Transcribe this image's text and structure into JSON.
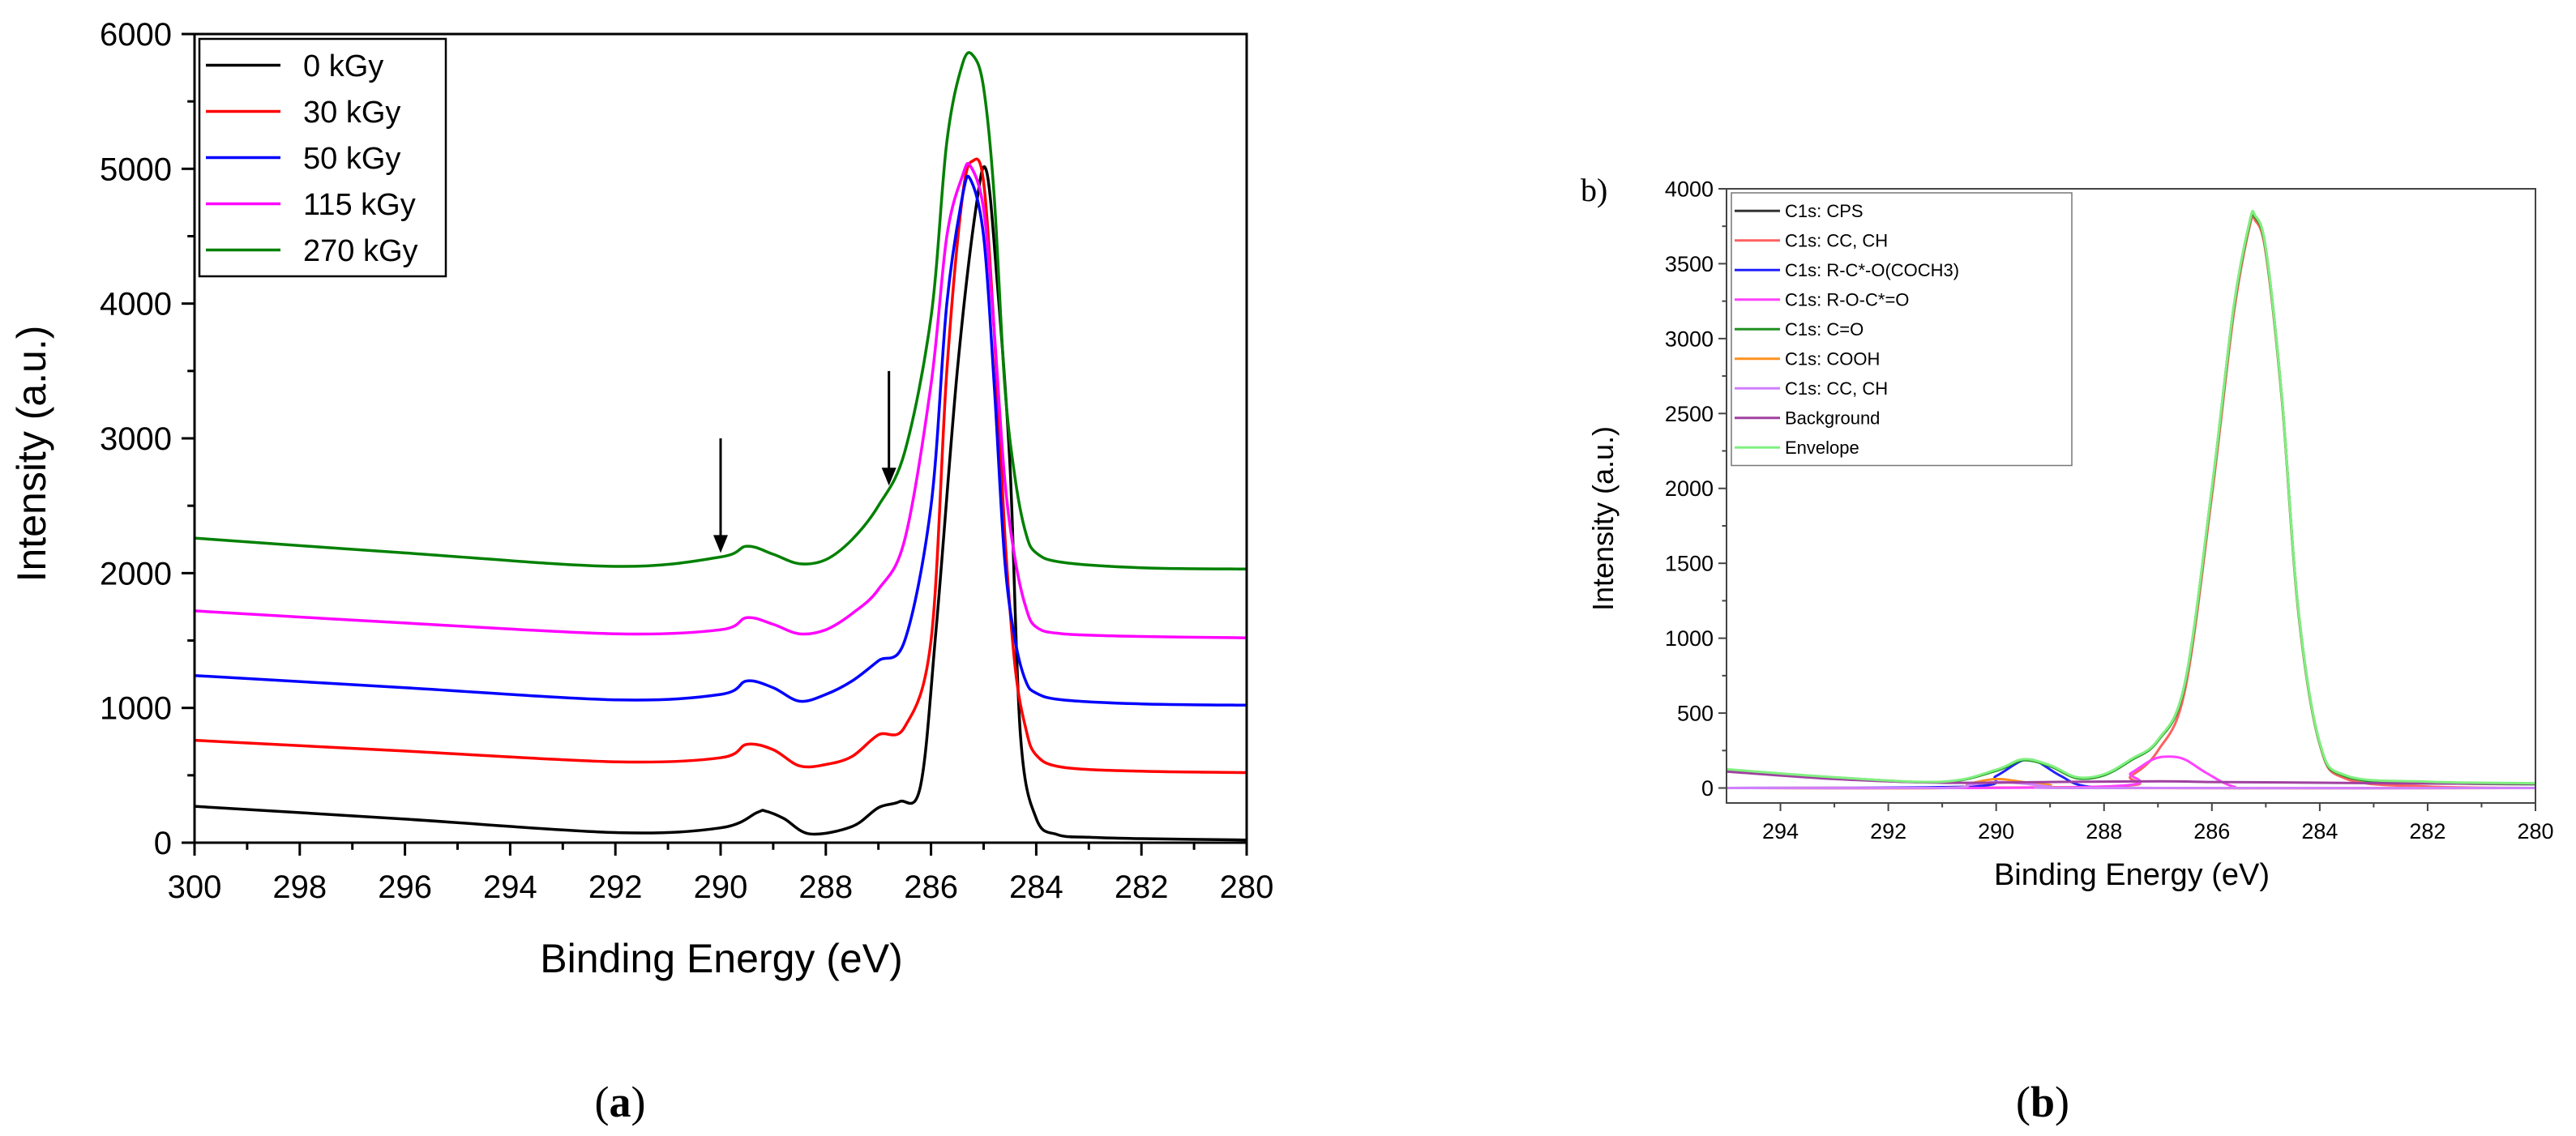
{
  "chart_data": [
    {
      "type": "line",
      "panel_caption": {
        "open": "(",
        "letter": "a",
        "close": ")"
      },
      "title": "",
      "xlabel": "Binding Energy (eV)",
      "ylabel": "Intensity (a.u.)",
      "xlim": [
        300,
        280
      ],
      "ylim": [
        0,
        6000
      ],
      "x_ticks": [
        "300",
        "298",
        "296",
        "294",
        "292",
        "290",
        "288",
        "286",
        "284",
        "282",
        "280"
      ],
      "y_ticks": [
        "0",
        "1000",
        "2000",
        "3000",
        "4000",
        "5000",
        "6000"
      ],
      "legend_position": "top-left",
      "arrows": [
        {
          "x": 290.0,
          "y_from": 3000,
          "y_to": 2150
        },
        {
          "x": 286.8,
          "y_from": 3500,
          "y_to": 2650
        }
      ],
      "series": [
        {
          "name": "0 kGy",
          "color": "#000000",
          "x": [
            300,
            296,
            292,
            290,
            289.3,
            289.15,
            288.8,
            288.3,
            287.5,
            287.0,
            286.6,
            286.2,
            285.9,
            285.5,
            285.15,
            284.95,
            284.75,
            284.5,
            284.3,
            284.0,
            283.6,
            283.0,
            282,
            280
          ],
          "values": [
            270,
            175,
            75,
            110,
            225,
            235,
            180,
            65,
            120,
            260,
            305,
            420,
            1600,
            3500,
            4700,
            4990,
            4200,
            2800,
            800,
            180,
            60,
            40,
            30,
            20
          ]
        },
        {
          "name": "30 kGy",
          "color": "#ff0000",
          "x": [
            300,
            296,
            292,
            290,
            289.5,
            289.0,
            288.5,
            288.0,
            287.5,
            287.0,
            286.5,
            286.0,
            285.7,
            285.4,
            285.2,
            285.0,
            284.8,
            284.6,
            284.4,
            284.2,
            284.0,
            283.5,
            282,
            280
          ],
          "values": [
            760,
            680,
            600,
            630,
            730,
            690,
            570,
            580,
            640,
            800,
            860,
            1500,
            3500,
            4800,
            5060,
            4900,
            3800,
            2300,
            1300,
            850,
            650,
            560,
            530,
            520
          ]
        },
        {
          "name": "50 kGy",
          "color": "#0000ff",
          "x": [
            300,
            296,
            292,
            290,
            289.5,
            289.0,
            288.5,
            288.0,
            287.5,
            287.0,
            286.5,
            286.0,
            285.7,
            285.4,
            285.25,
            285.0,
            284.8,
            284.6,
            284.4,
            284.2,
            284.0,
            283.5,
            282,
            280
          ],
          "values": [
            1240,
            1150,
            1060,
            1100,
            1200,
            1150,
            1050,
            1100,
            1200,
            1350,
            1500,
            2500,
            4000,
            4800,
            4920,
            4500,
            3400,
            2100,
            1500,
            1200,
            1110,
            1060,
            1030,
            1020
          ]
        },
        {
          "name": "115 kGy",
          "color": "#ff00ff",
          "x": [
            300,
            296,
            292,
            290,
            289.5,
            289.0,
            288.5,
            288.0,
            287.5,
            287.0,
            286.5,
            286.0,
            285.7,
            285.4,
            285.25,
            285.0,
            284.8,
            284.6,
            284.4,
            284.2,
            284.0,
            283.5,
            282,
            280
          ],
          "values": [
            1720,
            1630,
            1550,
            1580,
            1670,
            1620,
            1550,
            1580,
            1700,
            1880,
            2250,
            3400,
            4500,
            4950,
            5020,
            4700,
            3800,
            2700,
            2100,
            1750,
            1600,
            1550,
            1530,
            1520
          ]
        },
        {
          "name": "270 kGy",
          "color": "#008000",
          "x": [
            300,
            296,
            292,
            290,
            289.5,
            289.0,
            288.5,
            288.0,
            287.5,
            287.0,
            286.5,
            286.0,
            285.7,
            285.4,
            285.2,
            285.0,
            284.8,
            284.6,
            284.4,
            284.2,
            284.0,
            283.5,
            282,
            280
          ],
          "values": [
            2260,
            2150,
            2050,
            2120,
            2200,
            2140,
            2070,
            2100,
            2250,
            2500,
            2900,
            3900,
            5200,
            5780,
            5840,
            5600,
            4800,
            3400,
            2700,
            2300,
            2150,
            2080,
            2040,
            2030
          ]
        }
      ]
    },
    {
      "type": "line",
      "panel_caption": {
        "open": "(",
        "letter": "b",
        "close": ")"
      },
      "corner_label": "b)",
      "title": "",
      "xlabel": "Binding Energy (eV)",
      "ylabel": "Intensity (a.u.)",
      "xlim": [
        295,
        280
      ],
      "ylim": [
        -100,
        4000
      ],
      "x_ticks": [
        "294",
        "292",
        "290",
        "288",
        "286",
        "284",
        "282",
        "280"
      ],
      "y_ticks": [
        "0",
        "500",
        "1000",
        "1500",
        "2000",
        "2500",
        "3000",
        "3500",
        "4000"
      ],
      "legend_position": "top-left",
      "series": [
        {
          "name": "C1s: CPS",
          "color": "#333333",
          "x": [
            295,
            293,
            291,
            290,
            289.5,
            289.0,
            288.5,
            288,
            287.5,
            287,
            286.5,
            286,
            285.6,
            285.3,
            285.2,
            285.0,
            284.7,
            284.4,
            284.0,
            283.5,
            282,
            280
          ],
          "values": [
            120,
            70,
            40,
            120,
            190,
            150,
            70,
            90,
            190,
            320,
            700,
            2000,
            3200,
            3780,
            3820,
            3600,
            2600,
            1200,
            300,
            80,
            40,
            30
          ]
        },
        {
          "name": "C1s: CC, CH",
          "color": "#ff6060",
          "x": [
            295,
            288,
            287.5,
            287,
            286.5,
            286,
            285.6,
            285.3,
            285.2,
            285.0,
            284.7,
            284.4,
            284.0,
            283.5,
            282,
            280
          ],
          "values": [
            0,
            10,
            80,
            250,
            650,
            1950,
            3150,
            3750,
            3790,
            3570,
            2580,
            1180,
            290,
            60,
            10,
            0
          ]
        },
        {
          "name": "C1s: R-C*-O(COCH3)",
          "color": "#2020ff",
          "x": [
            295,
            290.5,
            290,
            289.6,
            289.4,
            289.2,
            288.8,
            288.3,
            287,
            280
          ],
          "values": [
            0,
            10,
            80,
            170,
            190,
            170,
            80,
            10,
            0,
            0
          ]
        },
        {
          "name": "C1s: R-O-C*=O",
          "color": "#ff40ff",
          "x": [
            295,
            288,
            287.5,
            287.1,
            286.8,
            286.5,
            286.1,
            285.6,
            285,
            280
          ],
          "values": [
            0,
            10,
            100,
            190,
            210,
            190,
            100,
            10,
            0,
            0
          ]
        },
        {
          "name": "C1s: C=O",
          "color": "#209020",
          "x": [
            295,
            293,
            291,
            290,
            289.5,
            289.0,
            288.5,
            288,
            287.5,
            287,
            286.5,
            286,
            285.6,
            285.3,
            285.2,
            285.0,
            284.7,
            284.4,
            284.0,
            283.5,
            282,
            280
          ],
          "values": [
            115,
            65,
            40,
            115,
            185,
            145,
            65,
            85,
            185,
            315,
            690,
            1990,
            3190,
            3770,
            3810,
            3590,
            2590,
            1190,
            295,
            75,
            35,
            25
          ]
        },
        {
          "name": "C1s: COOH",
          "color": "#ff9020",
          "x": [
            295,
            291,
            290.5,
            290,
            289.5,
            289,
            288.5,
            280
          ],
          "values": [
            0,
            0,
            30,
            60,
            40,
            20,
            0,
            0
          ]
        },
        {
          "name": "C1s: CC, CH",
          "color": "#d080ff",
          "x": [
            295,
            291,
            290.5,
            290,
            289.5,
            289,
            288.5,
            280
          ],
          "values": [
            0,
            0,
            20,
            40,
            30,
            10,
            0,
            0
          ]
        },
        {
          "name": "Background",
          "color": "#a040a0",
          "x": [
            295,
            293,
            291,
            289,
            287,
            286,
            285,
            284,
            282,
            280
          ],
          "values": [
            110,
            60,
            35,
            40,
            45,
            40,
            38,
            35,
            30,
            28
          ]
        },
        {
          "name": "Envelope",
          "color": "#80f080",
          "x": [
            295,
            293,
            291,
            290,
            289.5,
            289.0,
            288.5,
            288,
            287.5,
            287,
            286.5,
            286,
            285.6,
            285.3,
            285.2,
            285.0,
            284.7,
            284.4,
            284.0,
            283.5,
            282,
            280
          ],
          "values": [
            125,
            72,
            42,
            122,
            192,
            152,
            72,
            92,
            192,
            322,
            702,
            2002,
            3202,
            3782,
            3822,
            3602,
            2602,
            1202,
            302,
            82,
            42,
            32
          ]
        }
      ]
    }
  ]
}
